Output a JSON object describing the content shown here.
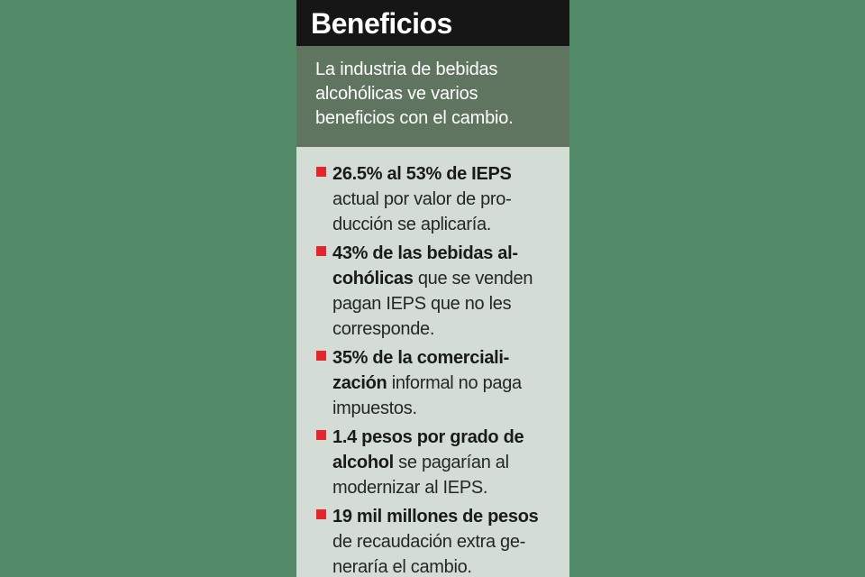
{
  "header": {
    "title": "Beneficios"
  },
  "intro": {
    "lines": [
      "La industria de bebidas",
      "alcohólicas ve varios",
      "beneficios con el cambio."
    ]
  },
  "colors": {
    "background": "#528a67",
    "card": "#d3ddd6",
    "title_bar": "#161616",
    "subtitle_box": "#5f7560",
    "bullet": "#e3262b"
  },
  "items": [
    {
      "lines": [
        [
          {
            "text": "26.5% al 53% de IEPS",
            "bold": true
          }
        ],
        [
          {
            "text": "actual por valor de pro-",
            "bold": false
          }
        ],
        [
          {
            "text": "ducción se aplicaría.",
            "bold": false
          }
        ]
      ]
    },
    {
      "lines": [
        [
          {
            "text": "43% de las bebidas al-",
            "bold": true
          }
        ],
        [
          {
            "text": "cohólicas",
            "bold": true
          },
          {
            "text": " que se venden",
            "bold": false
          }
        ],
        [
          {
            "text": "pagan IEPS que no les",
            "bold": false
          }
        ],
        [
          {
            "text": "corresponde.",
            "bold": false
          }
        ]
      ]
    },
    {
      "lines": [
        [
          {
            "text": "35% de la comerciali-",
            "bold": true
          }
        ],
        [
          {
            "text": "zación",
            "bold": true
          },
          {
            "text": " informal no paga",
            "bold": false
          }
        ],
        [
          {
            "text": "impuestos.",
            "bold": false
          }
        ]
      ]
    },
    {
      "lines": [
        [
          {
            "text": "1.4 pesos por grado de",
            "bold": true
          }
        ],
        [
          {
            "text": "alcohol",
            "bold": true
          },
          {
            "text": " se pagarían al",
            "bold": false
          }
        ],
        [
          {
            "text": "modernizar al IEPS.",
            "bold": false
          }
        ]
      ]
    },
    {
      "lines": [
        [
          {
            "text": "19 mil millones de pesos",
            "bold": true
          }
        ],
        [
          {
            "text": "de recaudación extra ge-",
            "bold": false
          }
        ],
        [
          {
            "text": "neraría el cambio.",
            "bold": false
          }
        ]
      ]
    }
  ]
}
